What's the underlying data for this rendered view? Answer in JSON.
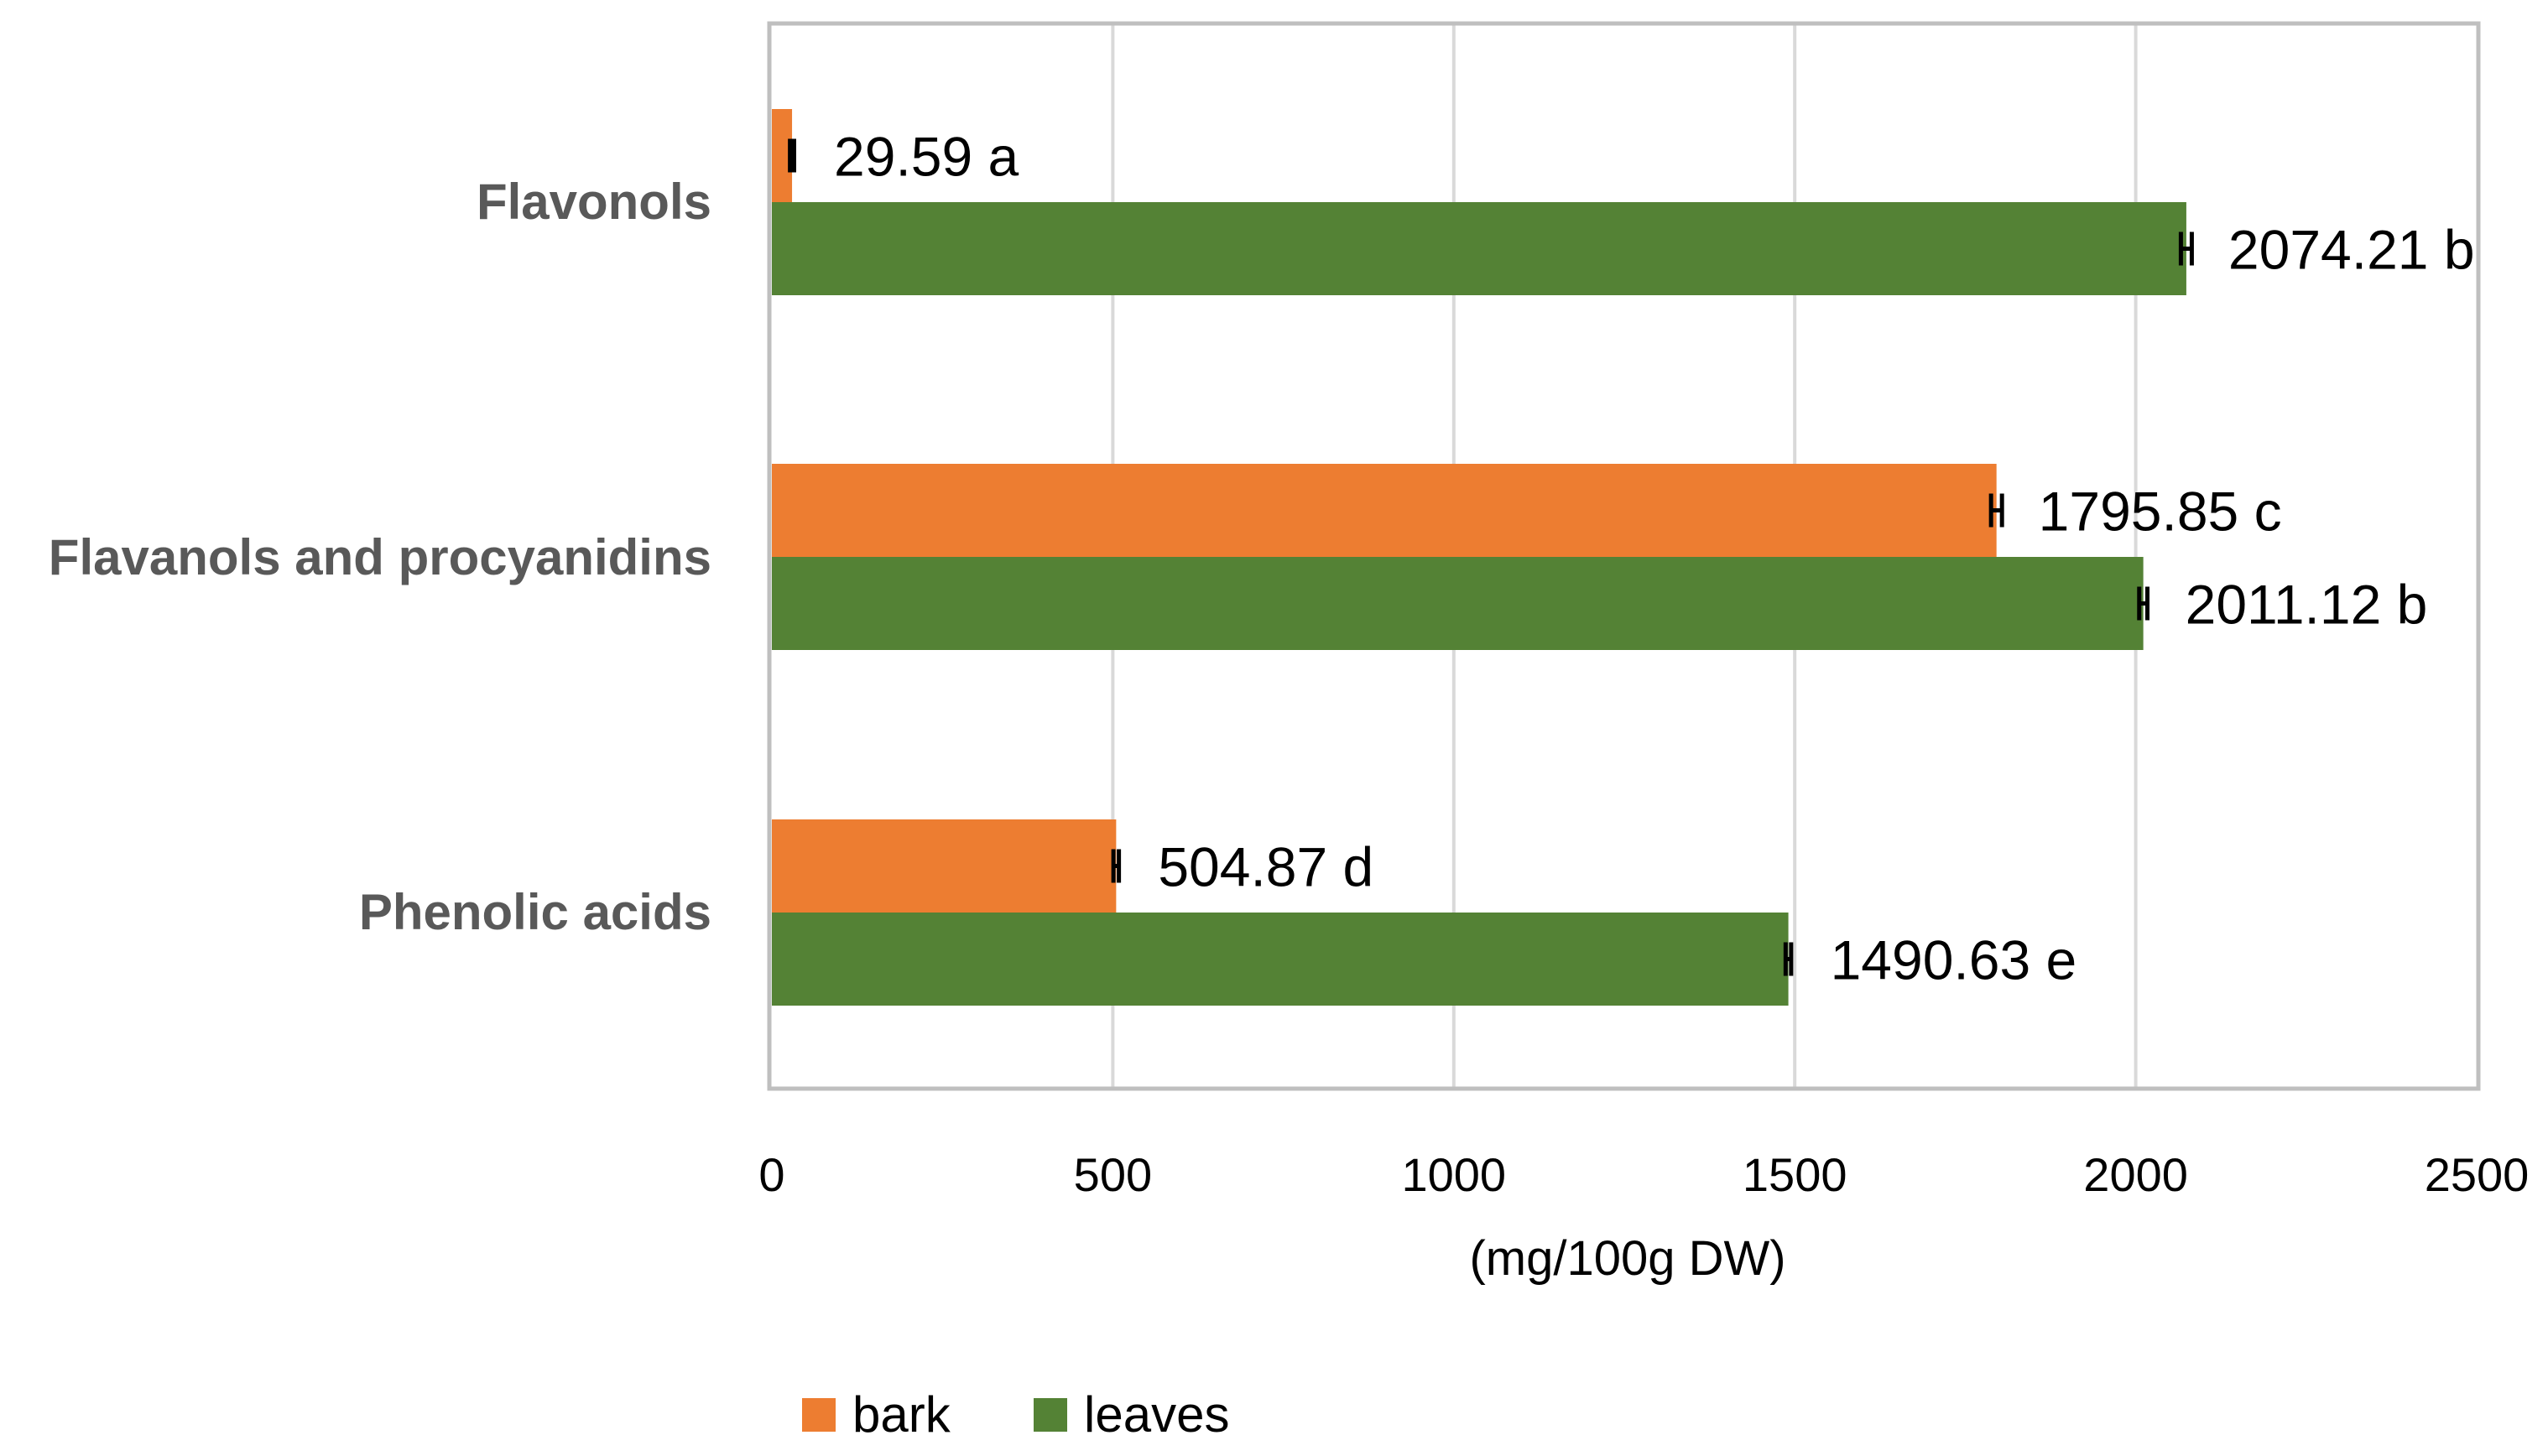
{
  "chart_data": {
    "type": "bar",
    "orientation": "horizontal",
    "categories": [
      "Flavonols",
      "Flavanols and procyanidins",
      "Phenolic acids"
    ],
    "series": [
      {
        "name": "bark",
        "color": "#ed7d31",
        "values": [
          29.59,
          1795.85,
          504.87
        ],
        "labels": [
          "29.59 a",
          "1795.85 c",
          "504.87 d"
        ],
        "errors": [
          3,
          8,
          4
        ]
      },
      {
        "name": "leaves",
        "color": "#548235",
        "values": [
          2074.21,
          2011.12,
          1490.63
        ],
        "labels": [
          "2074.21 b",
          "2011.12 b",
          "1490.63 e"
        ],
        "errors": [
          8,
          6,
          4
        ]
      }
    ],
    "xlabel": "(mg/100g DW)",
    "ylabel": "",
    "title": "",
    "xlim": [
      0,
      2500
    ],
    "xticks": [
      0,
      500,
      1000,
      1500,
      2000,
      2500
    ],
    "grid": true,
    "legend_position": "bottom"
  }
}
